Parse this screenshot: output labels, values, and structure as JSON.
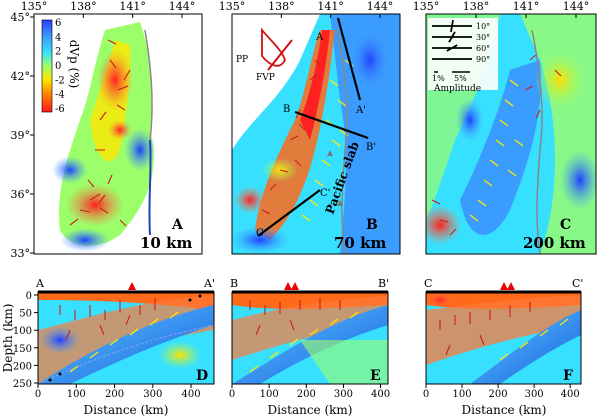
{
  "map_panels": {
    "lon_ticks": [
      "135°",
      "138°",
      "141°",
      "144°"
    ],
    "lat_ticks": [
      "45°",
      "42°",
      "39°",
      "36°",
      "33°"
    ],
    "panel_a": {
      "letter": "A",
      "depth": "10 km"
    },
    "panel_b": {
      "letter": "B",
      "depth": "70 km",
      "slab_label": "Pacific slab",
      "profiles": [
        "A",
        "A'",
        "B",
        "B'",
        "C",
        "C'"
      ],
      "inset_labels": [
        "PP",
        "FVP"
      ]
    },
    "panel_c": {
      "letter": "C",
      "depth": "200 km"
    }
  },
  "colorbar": {
    "title": "dVp (%)",
    "ticks": [
      "6",
      "4",
      "2",
      "0",
      "-2",
      "-4",
      "-6"
    ],
    "colors": [
      "#2a3cff",
      "#3a9cff",
      "#38e0ff",
      "#9cff6a",
      "#ffe600",
      "#ff7a00",
      "#ff1a1a"
    ]
  },
  "amplitude_legend": {
    "rows": [
      "10°",
      "30°",
      "60°",
      "90°"
    ],
    "scale": [
      "1%",
      "5%"
    ],
    "label": "Amplitude"
  },
  "sections": {
    "ylabel": "Depth (km)",
    "xlabel": "Distance (km)",
    "depth_ticks": [
      "0",
      "50",
      "100",
      "150",
      "200",
      "250"
    ],
    "panel_d": {
      "letter": "D",
      "start": "A",
      "end": "A'",
      "distance_ticks": [
        "0",
        "100",
        "200",
        "300",
        "400"
      ]
    },
    "panel_e": {
      "letter": "E",
      "start": "B",
      "end": "B'",
      "distance_ticks": [
        "0",
        "100",
        "200",
        "300",
        "400"
      ]
    },
    "panel_f": {
      "letter": "F",
      "start": "C",
      "end": "C'",
      "distance_ticks": [
        "0",
        "100",
        "200",
        "300",
        "400"
      ]
    }
  }
}
